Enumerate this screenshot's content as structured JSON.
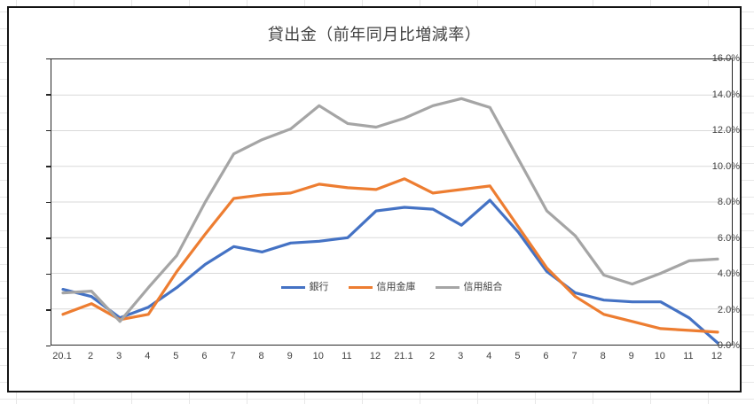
{
  "chart_data": {
    "type": "line",
    "title": "貸出金（前年同月比増減率）",
    "categories": [
      "20.1",
      "2",
      "3",
      "4",
      "5",
      "6",
      "7",
      "8",
      "9",
      "10",
      "11",
      "12",
      "21.1",
      "2",
      "3",
      "4",
      "5",
      "6",
      "7",
      "8",
      "9",
      "10",
      "11",
      "12"
    ],
    "series": [
      {
        "name": "銀行",
        "color": "#4472C4",
        "values": [
          3.1,
          2.7,
          1.5,
          2.1,
          3.2,
          4.5,
          5.5,
          5.2,
          5.7,
          5.8,
          6.0,
          7.5,
          7.7,
          7.6,
          6.7,
          8.1,
          6.3,
          4.1,
          2.9,
          2.5,
          2.4,
          2.4,
          1.5,
          0.1
        ]
      },
      {
        "name": "信用金庫",
        "color": "#ED7D31",
        "values": [
          1.7,
          2.3,
          1.4,
          1.7,
          4.1,
          6.2,
          8.2,
          8.4,
          8.5,
          9.0,
          8.8,
          8.7,
          9.3,
          8.5,
          8.7,
          8.9,
          6.6,
          4.3,
          2.7,
          1.7,
          1.3,
          0.9,
          0.8,
          0.7
        ]
      },
      {
        "name": "信用組合",
        "color": "#A5A5A5",
        "values": [
          2.9,
          3.0,
          1.3,
          3.2,
          5.0,
          8.0,
          10.7,
          11.5,
          12.1,
          13.4,
          12.4,
          12.2,
          12.7,
          13.4,
          13.8,
          13.3,
          10.4,
          7.5,
          6.1,
          3.9,
          3.4,
          4.0,
          4.7,
          4.8
        ]
      }
    ],
    "y_axis": {
      "min": 0,
      "max": 16,
      "step": 2,
      "tick_labels": [
        "16.0%",
        "14.0%",
        "12.0%",
        "10.0%",
        "8.0%",
        "6.0%",
        "4.0%",
        "2.0%",
        "0.0%"
      ]
    },
    "x_axis": {
      "tick_labels_note": "same as categories"
    },
    "legend_position": "inside-bottom-center",
    "grid": "horizontal"
  },
  "colors": {
    "gridline": "#D9D9D9",
    "axis_text": "#404040",
    "title_text": "#404040",
    "plot_border": "#262626",
    "frame_border": "#141414"
  }
}
